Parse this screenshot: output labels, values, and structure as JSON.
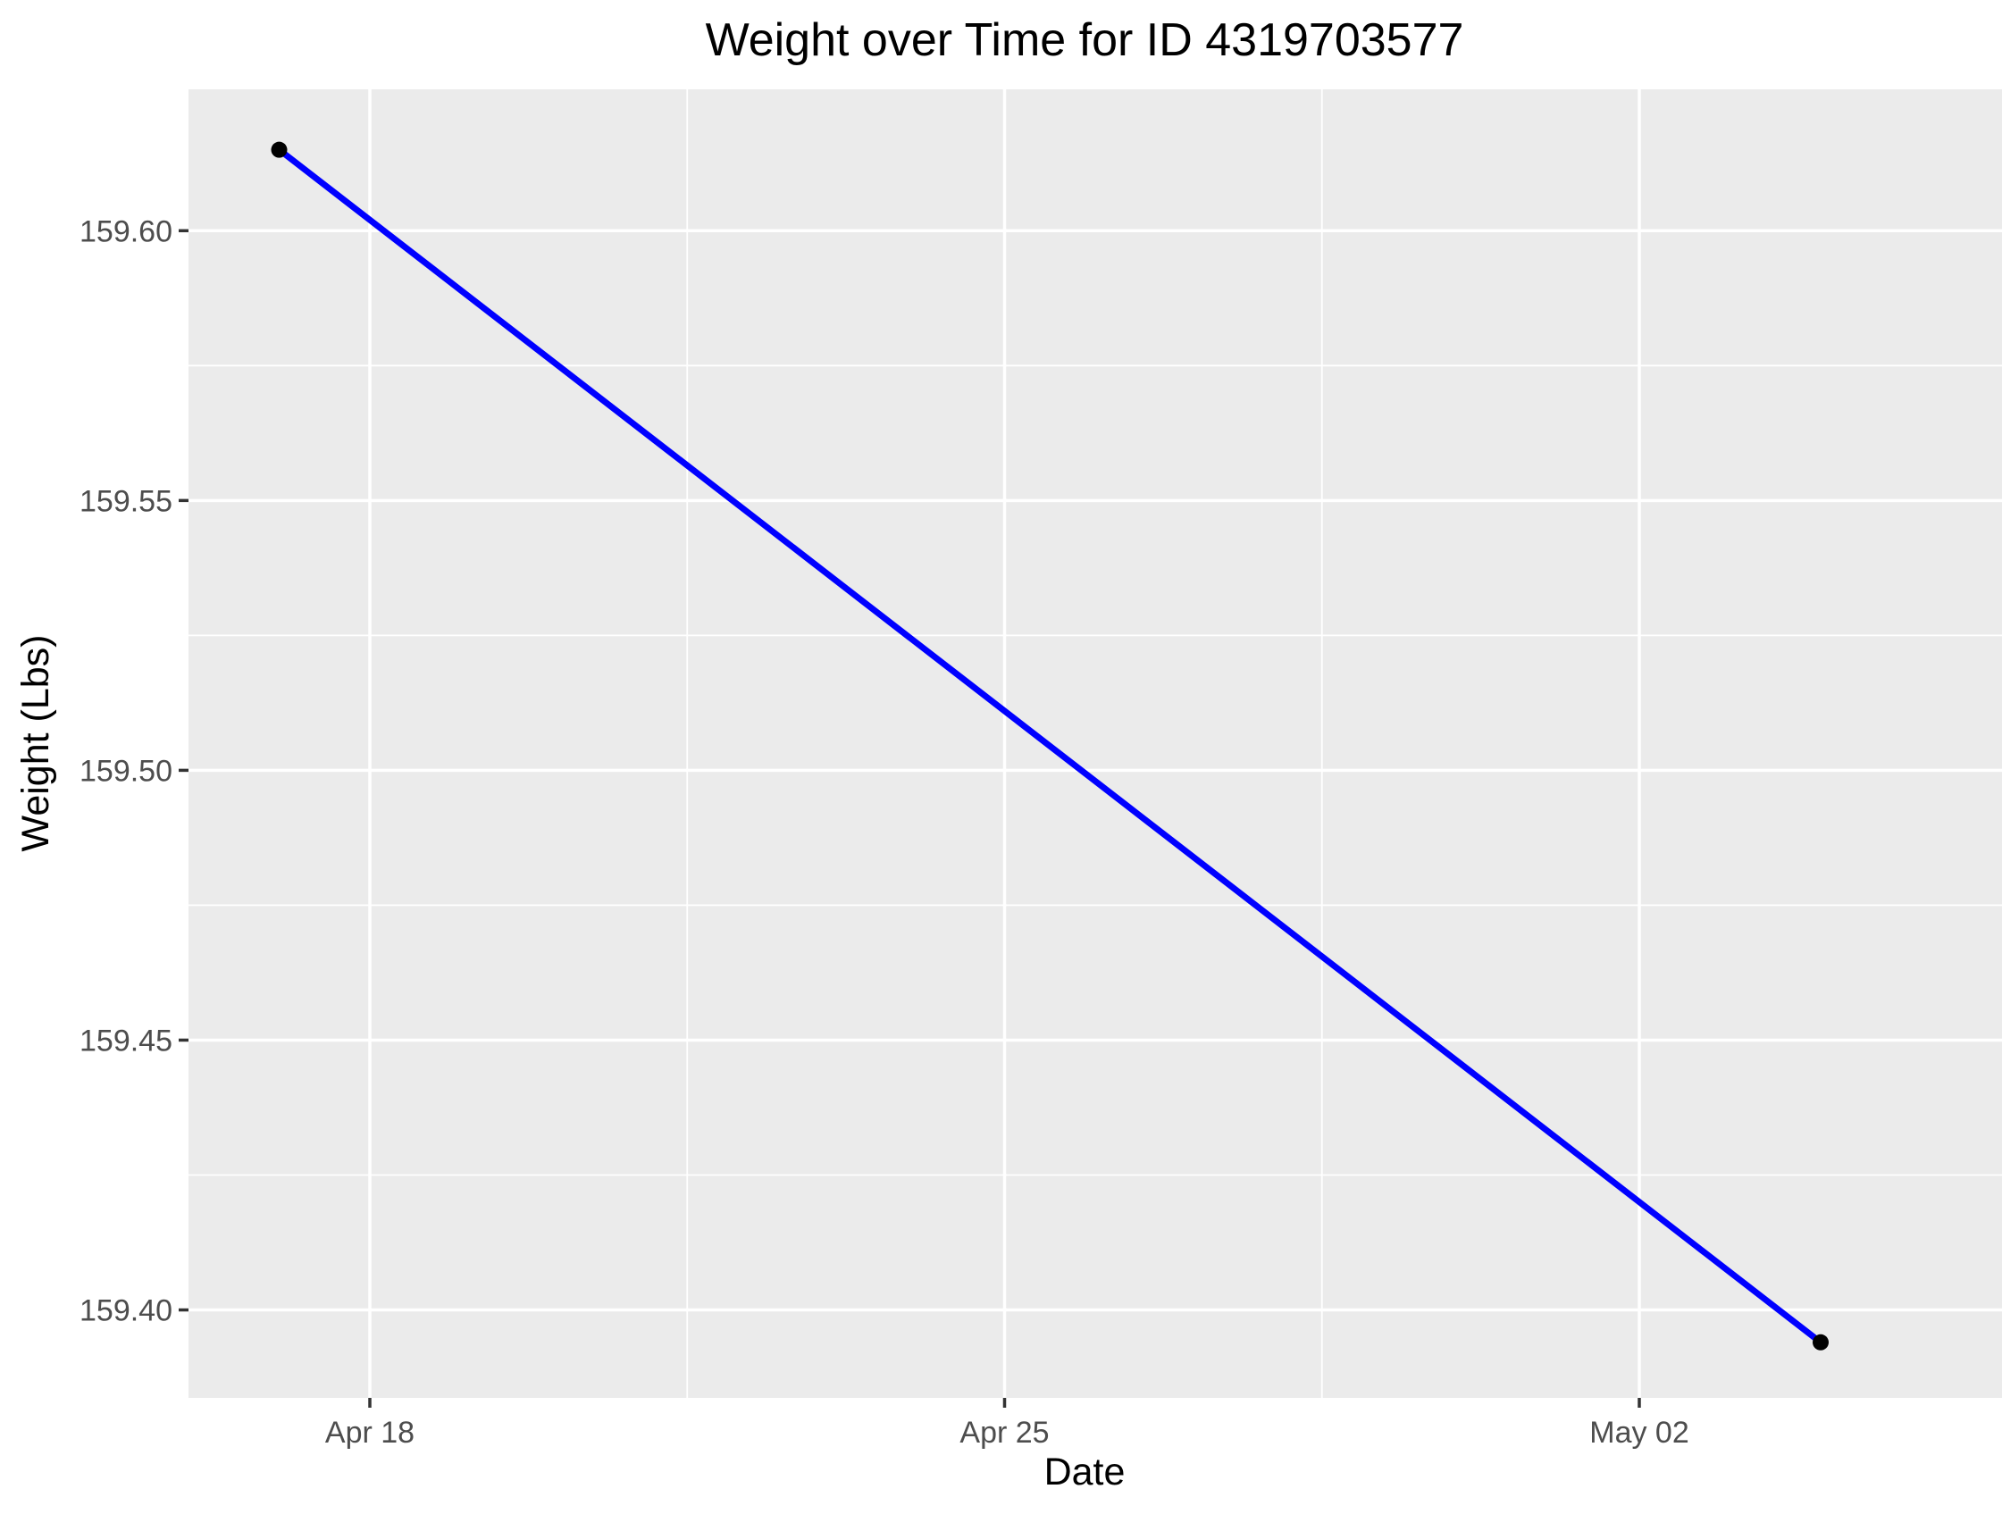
{
  "chart_data": {
    "type": "line",
    "title": "Weight over Time for ID 4319703577",
    "xlabel": "Date",
    "ylabel": "Weight (Lbs)",
    "x_domain": [
      "2016-04-16",
      "2016-05-06"
    ],
    "ylim": [
      159.3837,
      159.6262
    ],
    "x_ticks": [
      {
        "date": "2016-04-18",
        "label": "Apr 18"
      },
      {
        "date": "2016-04-25",
        "label": "Apr 25"
      },
      {
        "date": "2016-05-02",
        "label": "May 02"
      }
    ],
    "x_minor_ticks": [
      "2016-04-21T12:00:00",
      "2016-04-28T12:00:00"
    ],
    "y_ticks": [
      {
        "value": 159.4,
        "label": "159.40"
      },
      {
        "value": 159.45,
        "label": "159.45"
      },
      {
        "value": 159.5,
        "label": "159.50"
      },
      {
        "value": 159.55,
        "label": "159.55"
      },
      {
        "value": 159.6,
        "label": "159.60"
      }
    ],
    "y_minor_ticks": [
      159.425,
      159.475,
      159.525,
      159.575
    ],
    "series": [
      {
        "name": "Weight",
        "color": "#0000ff",
        "point_color": "#000000",
        "points": [
          {
            "date": "2016-04-17",
            "value": 159.615
          },
          {
            "date": "2016-05-04",
            "value": 159.394
          }
        ]
      }
    ],
    "grid": true,
    "legend": "none"
  }
}
